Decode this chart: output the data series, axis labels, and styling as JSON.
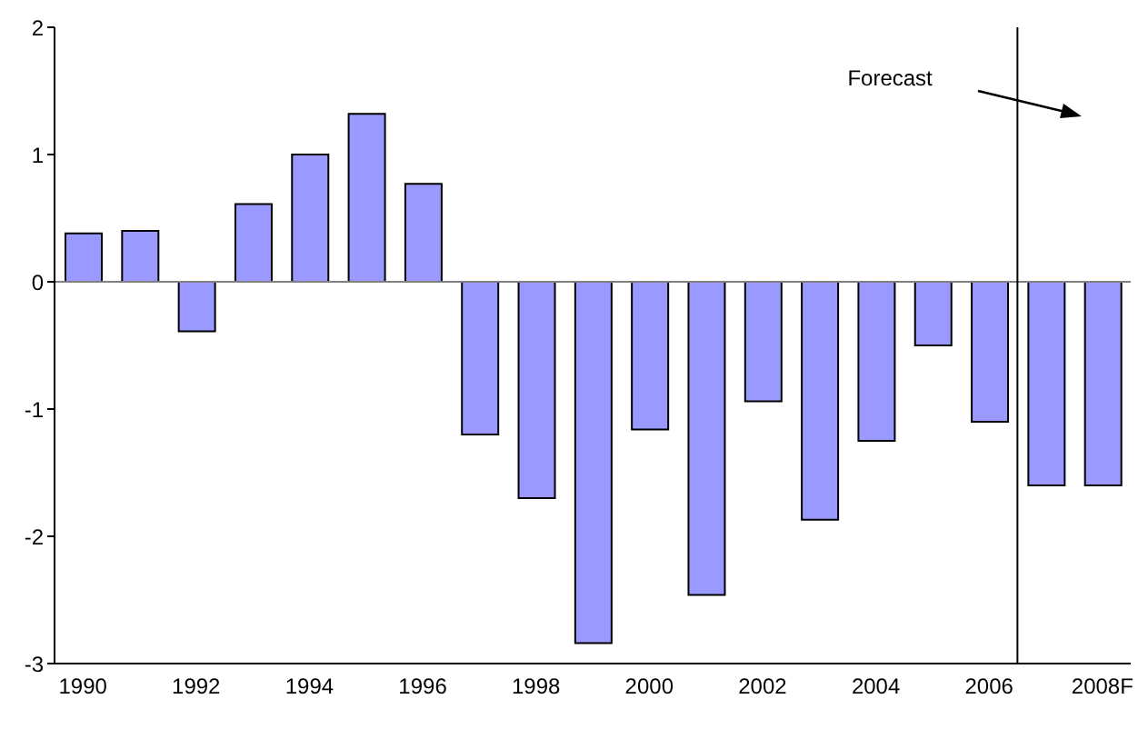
{
  "chart_data": {
    "type": "bar",
    "categories": [
      "1990",
      null,
      "1992",
      null,
      "1994",
      null,
      "1996",
      null,
      "1998",
      null,
      "2000",
      null,
      "2002",
      null,
      "2004",
      null,
      "2006",
      null,
      "2008F"
    ],
    "values": [
      0.38,
      0.4,
      -0.39,
      0.61,
      1.0,
      1.32,
      0.77,
      -1.2,
      -1.7,
      -2.84,
      -1.16,
      -2.46,
      -0.94,
      -1.87,
      -1.25,
      -0.5,
      -1.1,
      -1.6,
      -1.6
    ],
    "color": "#9999ff",
    "ylim": [
      -3,
      2
    ],
    "yticks": [
      -3,
      -2,
      -1,
      0,
      1,
      2
    ],
    "ref_lines": [
      {
        "axis": "x",
        "value": "2006",
        "color": "#000000"
      }
    ],
    "annotations": [
      "Forecast"
    ]
  }
}
